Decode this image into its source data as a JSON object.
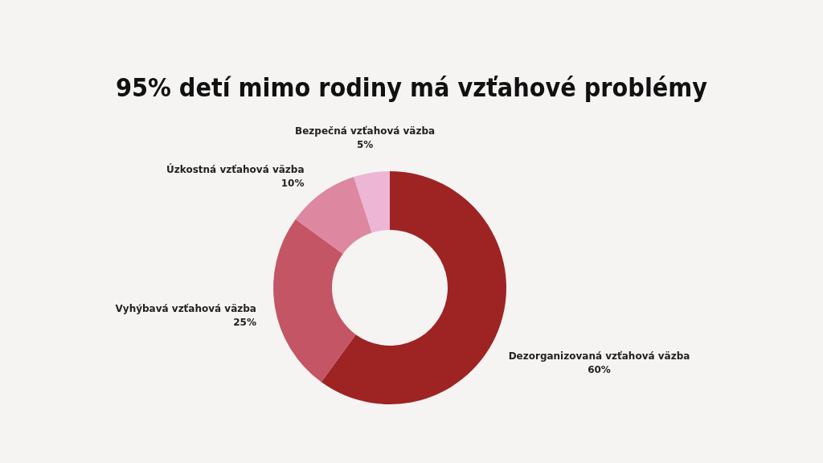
{
  "chart_data": {
    "type": "donut",
    "title": "95% detí mimo rodiny má vzťahové problémy",
    "categories": [
      "Dezorganizovaná vzťahová väzba",
      "Vyhýbavá vzťahová väzba",
      "Úzkostná vzťahová väzba",
      "Bezpečná vzťahová väzba"
    ],
    "values": [
      60,
      25,
      10,
      5
    ],
    "value_labels": [
      "60%",
      "25%",
      "10%",
      "5%"
    ],
    "colors": [
      "#9e2424",
      "#c45565",
      "#de87a0",
      "#ecb6d4"
    ]
  }
}
